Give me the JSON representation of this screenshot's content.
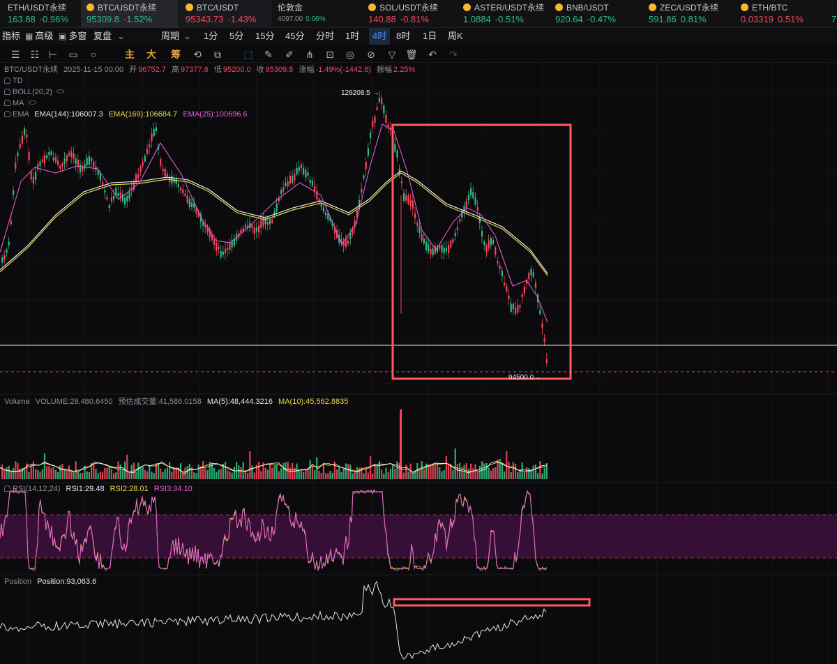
{
  "tickers": [
    {
      "name": "ETH/USDT永续",
      "price": "163.88",
      "change": "-0.96%",
      "price_dir": "up",
      "change_dir": "up",
      "coin": false
    },
    {
      "name": "BTC/USDT永续",
      "price": "95309.8",
      "change": "-1.52%",
      "price_dir": "up",
      "change_dir": "up",
      "coin": true
    },
    {
      "name": "BTC/USDT",
      "price": "95343.73",
      "change": "-1.43%",
      "price_dir": "down",
      "change_dir": "down",
      "coin": true
    },
    {
      "name": "伦敦金",
      "price": "4097.00",
      "change": "0.06%",
      "small": true,
      "coin": false
    },
    {
      "name": "SOL/USDT永续",
      "price": "140.88",
      "change": "-0.81%",
      "price_dir": "down",
      "change_dir": "down",
      "coin": true
    },
    {
      "name": "ASTER/USDT永续",
      "price": "1.0884",
      "change": "-0.51%",
      "price_dir": "up",
      "change_dir": "up",
      "coin": true
    },
    {
      "name": "BNB/USDT",
      "price": "920.64",
      "change": "-0.47%",
      "price_dir": "up",
      "change_dir": "up",
      "coin": true
    },
    {
      "name": "ZEC/USDT永续",
      "price": "591.86",
      "change": "0.81%",
      "price_dir": "up",
      "change_dir": "up",
      "coin": true
    },
    {
      "name": "ETH/BTC",
      "price": "0.03319",
      "change": "0.51%",
      "price_dir": "down",
      "change_dir": "down",
      "coin": true
    },
    {
      "name": "",
      "price": "7",
      "change": "",
      "price_dir": "up",
      "change_dir": "up",
      "coin": false
    }
  ],
  "toolbar": {
    "indicators": "指标",
    "advanced": "高级",
    "multi_window": "多窗",
    "replay": "复盘",
    "period": "周期",
    "intervals": [
      "1分",
      "5分",
      "15分",
      "45分",
      "分时",
      "1时",
      "4时",
      "8时",
      "1日",
      "周K"
    ],
    "active_interval": "4时"
  },
  "drawing_tools": {
    "main": "主",
    "big": "大",
    "chips": "筹"
  },
  "ohlc": {
    "symbol": "BTC/USDT永续",
    "datetime": "2025-11-15 00:00",
    "open_label": "开",
    "open": "96752.7",
    "high_label": "高",
    "high": "97377.6",
    "low_label": "低",
    "low": "95200.0",
    "close_label": "收",
    "close": "95309.8",
    "change_label": "涨幅",
    "change": "-1.49%(-1442.8)",
    "amplitude_label": "振幅",
    "amplitude": "2.25%"
  },
  "indicators": {
    "td": "TD",
    "boll": "BOLL(20,2)",
    "ma": "MA",
    "ema": "EMA",
    "ema144": "EMA(144):106007.3",
    "ema169": "EMA(169):106684.7",
    "ema25": "EMA(25):100696.6"
  },
  "price_markers": {
    "high": "126208.5 →",
    "low": "94500.0 ←"
  },
  "volume": {
    "label": "Volume",
    "volume": "VOLUME:28,480.6450",
    "estimated": "预估成交量:41,586.0158",
    "ma5": "MA(5):48,444.3216",
    "ma10": "MA(10):45,562.8835"
  },
  "rsi": {
    "label": "RSI(14,12,24)",
    "rsi1": "RSI1:29.48",
    "rsi2": "RSI2:28.01",
    "rsi3": "RSI3:34.10"
  },
  "position": {
    "label": "Position",
    "value": "Position:93,063.6"
  },
  "colors": {
    "up": "#2ebd85",
    "down": "#f6465d",
    "ema144": "#ffffff",
    "ema169": "#e8d84a",
    "ema25": "#e25bd2",
    "annotation": "#ff5a5f",
    "accent": "#3d8bff",
    "rsi_band": "#3a0f3a"
  }
}
